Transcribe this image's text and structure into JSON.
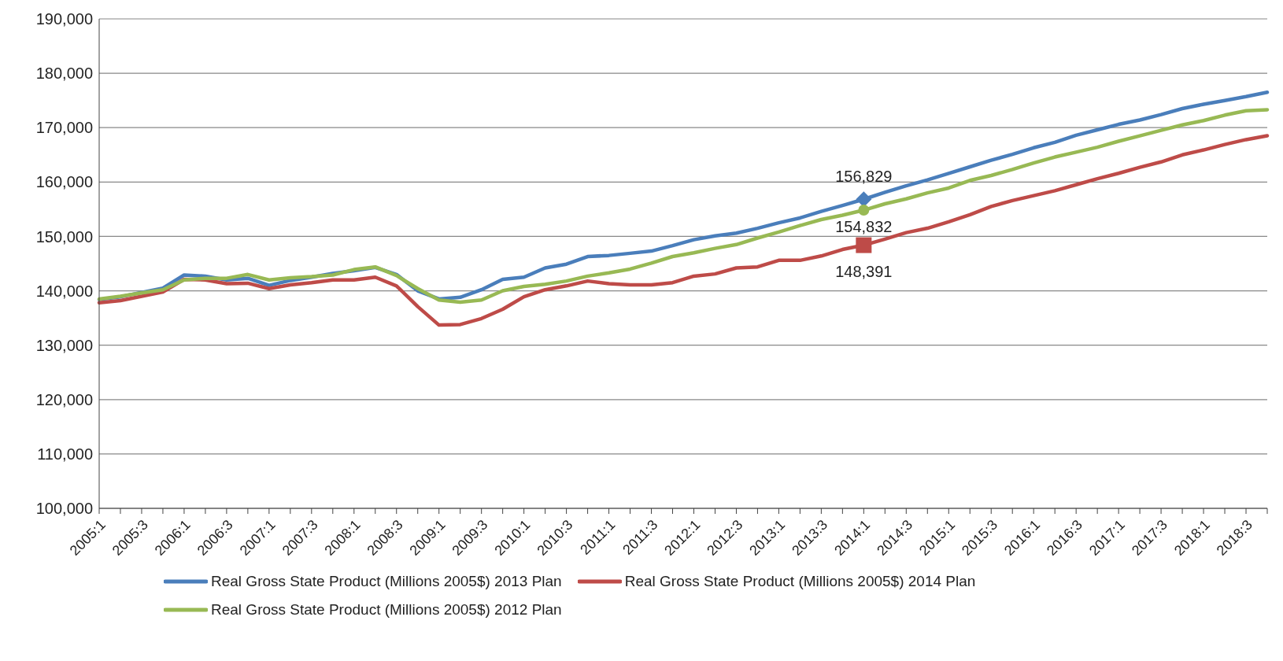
{
  "chart_data": {
    "type": "line",
    "categories": [
      "2005:1",
      null,
      "2005:3",
      null,
      "2006:1",
      null,
      "2006:3",
      null,
      "2007:1",
      null,
      "2007:3",
      null,
      "2008:1",
      null,
      "2008:3",
      null,
      "2009:1",
      null,
      "2009:3",
      null,
      "2010:1",
      null,
      "2010:3",
      null,
      "2011:1",
      null,
      "2011:3",
      null,
      "2012:1",
      null,
      "2012:3",
      null,
      "2013:1",
      null,
      "2013:3",
      null,
      "2014:1",
      null,
      "2014:3",
      null,
      "2015:1",
      null,
      "2015:3",
      null,
      "2016:1",
      null,
      "2016:3",
      null,
      "2017:1",
      null,
      "2017:3",
      null,
      "2018:1",
      null,
      "2018:3",
      null
    ],
    "series": [
      {
        "name": "Real Gross State Product (Millions 2005$) 2013 Plan",
        "color": "#4a7ebb",
        "values": [
          138400,
          138900,
          139700,
          140500,
          142900,
          142700,
          142000,
          142300,
          141000,
          141900,
          142500,
          143200,
          143700,
          144300,
          143000,
          140000,
          138500,
          138800,
          140200,
          142100,
          142500,
          144200,
          144900,
          146300,
          146500,
          146900,
          147300,
          148300,
          149400,
          150100,
          150600,
          151500,
          152500,
          153400,
          154600,
          155700,
          156829,
          158100,
          159300,
          160400,
          161600,
          162800,
          164000,
          165100,
          166300,
          167300,
          168600,
          169600,
          170600,
          171400,
          172400,
          173500,
          174300,
          175000,
          175700,
          176500
        ],
        "value_labels": [
          null,
          null,
          null,
          null,
          null,
          null,
          null,
          null,
          null,
          null,
          null,
          null,
          null,
          null,
          null,
          null,
          null,
          null,
          null,
          null,
          null,
          null,
          null,
          null,
          null,
          null,
          null,
          null,
          null,
          null,
          null,
          null,
          null,
          null,
          null,
          null,
          "156,829",
          null,
          null,
          null,
          null,
          null,
          null,
          null,
          null,
          null,
          null,
          null,
          null,
          null,
          null,
          null,
          null,
          null,
          null,
          null
        ]
      },
      {
        "name": "Real Gross State Product (Millions 2005$) 2014 Plan",
        "color": "#be4b48",
        "values": [
          137800,
          138200,
          139000,
          139800,
          142100,
          142000,
          141300,
          141400,
          140400,
          141100,
          141500,
          142000,
          142000,
          142500,
          140900,
          137100,
          133700,
          133800,
          134900,
          136600,
          138900,
          140200,
          140900,
          141800,
          141300,
          141100,
          141100,
          141500,
          142700,
          143100,
          144200,
          144400,
          145600,
          145600,
          146400,
          147600,
          148391,
          149500,
          150700,
          151500,
          152700,
          154000,
          155500,
          156600,
          157500,
          158400,
          159500,
          160600,
          161600,
          162700,
          163700,
          165000,
          165900,
          166900,
          167800,
          168500
        ],
        "value_labels": [
          null,
          null,
          null,
          null,
          null,
          null,
          null,
          null,
          null,
          null,
          null,
          null,
          null,
          null,
          null,
          null,
          null,
          null,
          null,
          null,
          null,
          null,
          null,
          null,
          null,
          null,
          null,
          null,
          null,
          null,
          null,
          null,
          null,
          null,
          null,
          null,
          "148,391",
          null,
          null,
          null,
          null,
          null,
          null,
          null,
          null,
          null,
          null,
          null,
          null,
          null,
          null,
          null,
          null,
          null,
          null,
          null
        ]
      },
      {
        "name": "Real Gross State Product (Millions 2005$) 2012 Plan",
        "color": "#98b954",
        "values": [
          138500,
          139000,
          139600,
          140200,
          142000,
          142300,
          142300,
          143000,
          142000,
          142400,
          142600,
          142900,
          143900,
          144400,
          142800,
          140400,
          138300,
          137900,
          138300,
          140000,
          140800,
          141200,
          141800,
          142700,
          143300,
          144000,
          145100,
          146300,
          147000,
          147800,
          148500,
          149700,
          150800,
          152000,
          153100,
          153900,
          154832,
          156000,
          156900,
          158000,
          158900,
          160300,
          161200,
          162300,
          163500,
          164600,
          165500,
          166400,
          167500,
          168500,
          169500,
          170500,
          171300,
          172300,
          173100,
          173300
        ],
        "value_labels": [
          null,
          null,
          null,
          null,
          null,
          null,
          null,
          null,
          null,
          null,
          null,
          null,
          null,
          null,
          null,
          null,
          null,
          null,
          null,
          null,
          null,
          null,
          null,
          null,
          null,
          null,
          null,
          null,
          null,
          null,
          null,
          null,
          null,
          null,
          null,
          null,
          "154,832",
          null,
          null,
          null,
          null,
          null,
          null,
          null,
          null,
          null,
          null,
          null,
          null,
          null,
          null,
          null,
          null,
          null,
          null,
          null
        ]
      }
    ],
    "ylim": [
      100000,
      190000
    ],
    "yticks": [
      {
        "value": 100000,
        "label": "100,000"
      },
      {
        "value": 110000,
        "label": "110,000"
      },
      {
        "value": 120000,
        "label": "120,000"
      },
      {
        "value": 130000,
        "label": "130,000"
      },
      {
        "value": 140000,
        "label": "140,000"
      },
      {
        "value": 150000,
        "label": "150,000"
      },
      {
        "value": 160000,
        "label": "160,000"
      },
      {
        "value": 170000,
        "label": "170,000"
      },
      {
        "value": 180000,
        "label": "180,000"
      },
      {
        "value": 190000,
        "label": "190,000"
      }
    ],
    "grid": "y",
    "legend": "bottom",
    "line_style": "solid"
  }
}
